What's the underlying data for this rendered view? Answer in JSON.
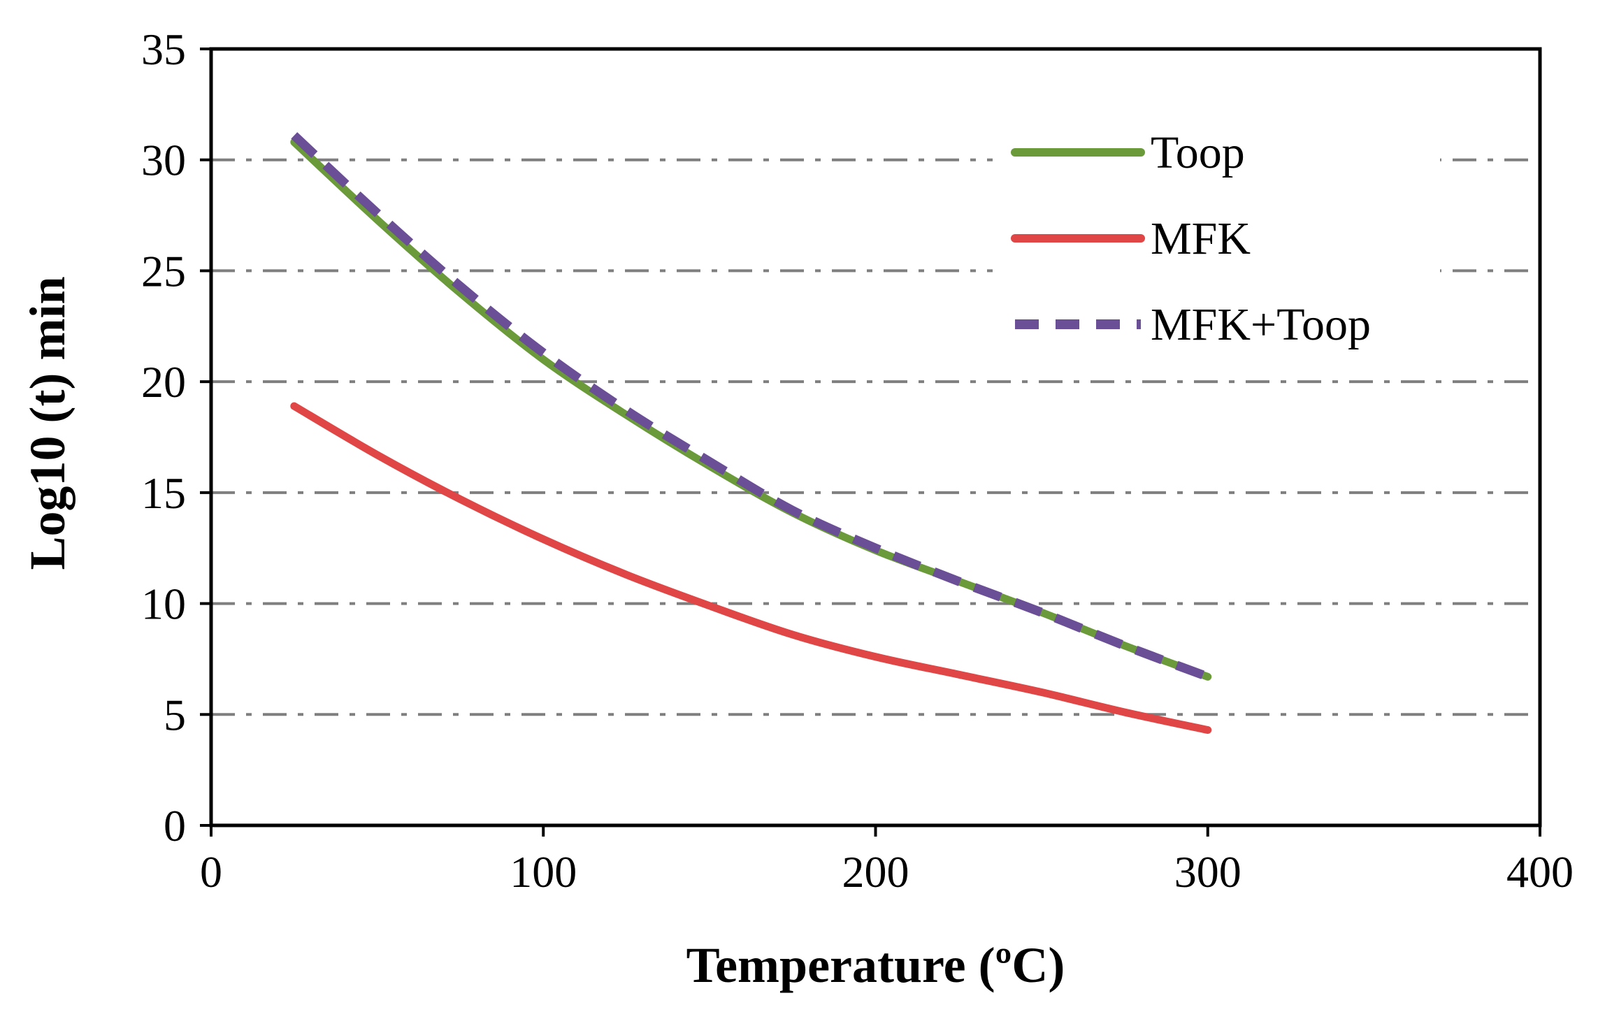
{
  "chart_data": {
    "type": "line",
    "xlabel": "Temperature (ºC)",
    "ylabel": "Log10 (t) min",
    "xlim": [
      0,
      400
    ],
    "ylim": [
      0,
      35
    ],
    "xticks": [
      0,
      100,
      200,
      300,
      400
    ],
    "yticks": [
      0,
      5,
      10,
      15,
      20,
      25,
      30,
      35
    ],
    "x_tick_labels": [
      "0",
      "100",
      "200",
      "300",
      "400"
    ],
    "y_tick_labels": [
      "0",
      "5",
      "10",
      "15",
      "20",
      "25",
      "30",
      "35"
    ],
    "grid": "horizontal dash-dot",
    "legend_position": "top-right",
    "series": [
      {
        "name": "Toop",
        "color": "#6a9a3a",
        "style": "solid",
        "x": [
          25,
          50,
          75,
          100,
          125,
          150,
          175,
          200,
          225,
          250,
          275,
          300
        ],
        "y": [
          30.8,
          27.3,
          24.0,
          21.0,
          18.5,
          16.2,
          14.1,
          12.4,
          11.0,
          9.6,
          8.1,
          6.7
        ]
      },
      {
        "name": "MFK",
        "color": "#e04646",
        "style": "solid",
        "x": [
          25,
          50,
          75,
          100,
          125,
          150,
          175,
          200,
          225,
          250,
          275,
          300
        ],
        "y": [
          18.9,
          16.7,
          14.7,
          12.9,
          11.3,
          9.9,
          8.6,
          7.6,
          6.8,
          6.0,
          5.1,
          4.3
        ]
      },
      {
        "name": "MFK+Toop",
        "color": "#6a4e96",
        "style": "dashed",
        "x": [
          25,
          50,
          75,
          100,
          125,
          150,
          175,
          200,
          225,
          250,
          275,
          300
        ],
        "y": [
          31.1,
          27.6,
          24.3,
          21.3,
          18.7,
          16.4,
          14.2,
          12.5,
          11.0,
          9.6,
          8.1,
          6.7
        ]
      }
    ]
  }
}
